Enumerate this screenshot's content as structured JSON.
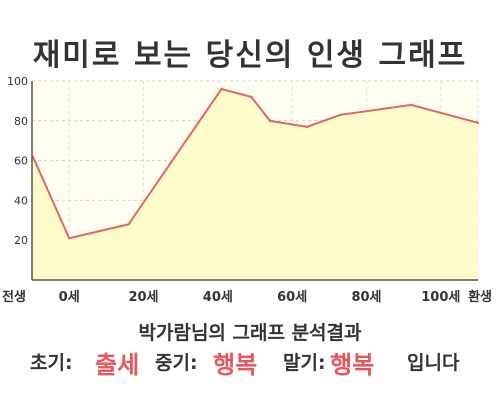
{
  "title": "재미로 보는 당신의 인생 그래프",
  "summary": "박가람님의 그래프 분석결과",
  "result": {
    "early_label": "초기:",
    "early_value": "출세",
    "mid_label": "중기:",
    "mid_value": "행복",
    "late_label": "말기:",
    "late_value": "행복",
    "ending": "입니다"
  },
  "colors": {
    "line": "#e06666",
    "fill": "#fffccc",
    "highlight": "#e8555a"
  },
  "chart_data": {
    "type": "area",
    "title": "재미로 보는 당신의 인생 그래프",
    "xlabel": "",
    "ylabel": "",
    "ylim": [
      0,
      100
    ],
    "y_ticks": [
      20,
      40,
      60,
      80,
      100
    ],
    "x_tick_labels": [
      "전생",
      "0세",
      "20세",
      "40세",
      "60세",
      "80세",
      "100세",
      "환생"
    ],
    "x_tick_index": [
      0,
      1,
      3,
      5,
      7,
      9,
      11,
      12
    ],
    "x_range": [
      0,
      12
    ],
    "grid": true,
    "series": [
      {
        "x": [
          0,
          1,
          2.6,
          4.4,
          5.1,
          5.9,
          6.4,
          7.4,
          8.3,
          10.2,
          12
        ],
        "values": [
          63,
          21,
          28,
          77,
          96,
          92,
          80,
          77,
          83,
          88,
          79
        ]
      }
    ]
  }
}
